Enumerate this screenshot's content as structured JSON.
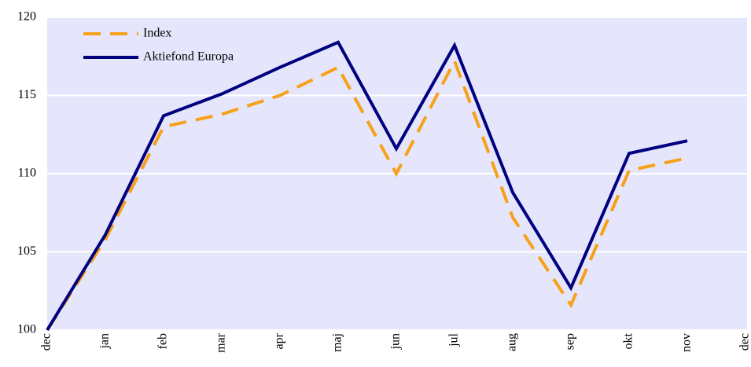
{
  "chart_data": {
    "type": "line",
    "categories": [
      "dec",
      "jan",
      "feb",
      "mar",
      "apr",
      "maj",
      "jun",
      "jul",
      "aug",
      "sep",
      "okt",
      "nov",
      "dec"
    ],
    "series": [
      {
        "name": "Index",
        "color": "#f7a11a",
        "dashed": true,
        "values": [
          100,
          105.8,
          113.0,
          113.8,
          115.0,
          116.8,
          110.0,
          117.2,
          107.2,
          101.6,
          110.2,
          111.0,
          null
        ]
      },
      {
        "name": "Aktiefond Europa",
        "color": "#000080",
        "dashed": false,
        "values": [
          100,
          106.1,
          113.7,
          115.1,
          116.8,
          118.4,
          111.6,
          118.2,
          108.8,
          102.7,
          111.3,
          112.1,
          null
        ]
      }
    ],
    "ylim": [
      100,
      120
    ],
    "yticks": [
      100,
      105,
      110,
      115,
      120
    ],
    "grid": true,
    "legend": "top-left"
  }
}
